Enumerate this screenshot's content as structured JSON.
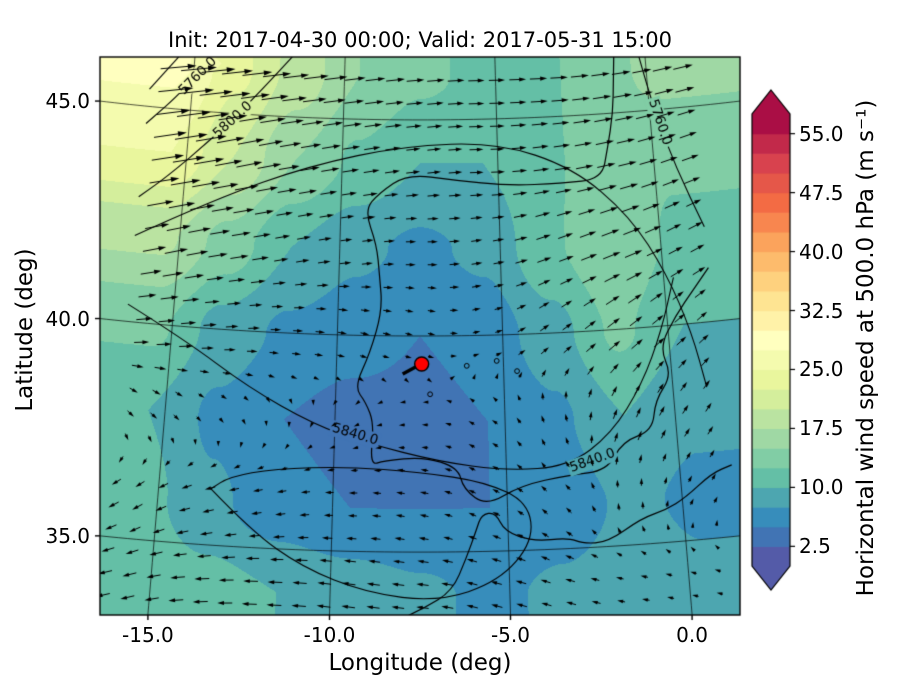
{
  "title": "Init: 2017-04-30 00:00; Valid: 2017-05-31 15:00",
  "axes": {
    "xlabel": "Longitude (deg)",
    "ylabel": "Latitude (deg)",
    "xticks": [
      -15.0,
      -10.0,
      -5.0,
      0.0
    ],
    "xtick_labels": [
      "-15.0",
      "-10.0",
      "-5.0",
      "0.0"
    ],
    "yticks": [
      35.0,
      40.0,
      45.0
    ],
    "ytick_labels": [
      "35.0",
      "40.0",
      "45.0"
    ]
  },
  "colorbar": {
    "label": "Horizontal wind speed at 500.0 hPa (m s⁻¹)",
    "ticks": [
      2.5,
      10.0,
      17.5,
      25.0,
      32.5,
      40.0,
      47.5,
      55.0
    ],
    "tick_labels": [
      "2.5",
      "10.0",
      "17.5",
      "25.0",
      "32.5",
      "40.0",
      "47.5",
      "55.0"
    ],
    "vmin": 0,
    "vmax": 57.5,
    "level_step": 2.5,
    "colormap": "Spectral_r",
    "stops": [
      [
        0.0,
        "#5e4fa2"
      ],
      [
        0.1,
        "#3288bd"
      ],
      [
        0.2,
        "#66c2a5"
      ],
      [
        0.3,
        "#abdda4"
      ],
      [
        0.4,
        "#e6f598"
      ],
      [
        0.5,
        "#ffffbf"
      ],
      [
        0.6,
        "#fee08b"
      ],
      [
        0.7,
        "#fdae61"
      ],
      [
        0.8,
        "#f46d43"
      ],
      [
        0.9,
        "#d53e4f"
      ],
      [
        1.0,
        "#9e0142"
      ]
    ]
  },
  "chart_data": {
    "type": "heatmap",
    "title": "Init: 2017-04-30 00:00; Valid: 2017-05-31 15:00",
    "xlabel": "Longitude (deg)",
    "ylabel": "Latitude (deg)",
    "xlim": [
      -16.4,
      1.4
    ],
    "ylim": [
      33.5,
      46.5
    ],
    "grid_lons": [
      -15.5,
      -13.5,
      -11.5,
      -9.5,
      -7.5,
      -5.5,
      -3.5,
      -1.5,
      0.5
    ],
    "grid_lats": [
      34,
      36,
      38,
      40,
      42,
      44,
      46
    ],
    "speed": [
      [
        12,
        11,
        10,
        9,
        8,
        7,
        8,
        9,
        8
      ],
      [
        11,
        8,
        6,
        5,
        5,
        5,
        6,
        8,
        7
      ],
      [
        10,
        7,
        5,
        4,
        4,
        5,
        7,
        10,
        8
      ],
      [
        13,
        9,
        7,
        6,
        5,
        6,
        9,
        13,
        10
      ],
      [
        18,
        14,
        10,
        8,
        7,
        8,
        12,
        15,
        12
      ],
      [
        25,
        20,
        15,
        12,
        10,
        10,
        12,
        14,
        13
      ],
      [
        28,
        23,
        19,
        15,
        13,
        12,
        12,
        14,
        16
      ]
    ],
    "u": [
      [
        -9,
        -10,
        -10,
        -9,
        -8,
        -7,
        -6,
        -4,
        -3
      ],
      [
        -6,
        -7,
        -6,
        -5,
        -5,
        -4,
        -3,
        0,
        2
      ],
      [
        4,
        2,
        0,
        -2,
        -3,
        -3,
        -1,
        3,
        4
      ],
      [
        11,
        8,
        6,
        5,
        4,
        4,
        6,
        9,
        7
      ],
      [
        17,
        13,
        9,
        7,
        6,
        7,
        10,
        13,
        10
      ],
      [
        24,
        19,
        14,
        11,
        9,
        9,
        11,
        13,
        12
      ],
      [
        27,
        22,
        18,
        14,
        12,
        11,
        12,
        13,
        14
      ]
    ],
    "v": [
      [
        -3,
        -1,
        0,
        1,
        1,
        2,
        2,
        1,
        1
      ],
      [
        -4,
        -2,
        -1,
        0,
        1,
        2,
        3,
        4,
        3
      ],
      [
        -3,
        -2,
        -2,
        -1,
        0,
        2,
        4,
        6,
        5
      ],
      [
        2,
        1,
        0,
        -1,
        -1,
        1,
        4,
        6,
        5
      ],
      [
        5,
        3,
        2,
        1,
        0,
        1,
        3,
        4,
        4
      ],
      [
        6,
        5,
        3,
        2,
        1,
        0,
        1,
        2,
        3
      ],
      [
        5,
        4,
        3,
        2,
        1,
        0,
        0,
        1,
        2
      ]
    ],
    "marker": {
      "lon": -7.45,
      "lat": 39.35,
      "color": "#ff0000"
    },
    "height_contours": [
      {
        "value": "5760.0",
        "pts": [
          [
            -14.0,
            46.6
          ],
          [
            -15.2,
            45.5
          ],
          [
            -16.4,
            44.6
          ]
        ],
        "labels": [
          [
            -14.85,
            45.8
          ]
        ]
      },
      {
        "value": "",
        "pts": [
          [
            -15.1,
            46.6
          ],
          [
            -16.4,
            45.4
          ]
        ],
        "labels": []
      },
      {
        "value": "5800.0",
        "pts": [
          [
            -11.5,
            46.6
          ],
          [
            -12.8,
            45.5
          ],
          [
            -14.2,
            44.4
          ],
          [
            -15.6,
            43.4
          ],
          [
            -16.4,
            42.9
          ]
        ],
        "labels": [
          [
            -13.6,
            44.85
          ]
        ]
      },
      {
        "value": "",
        "pts": [
          [
            -16.4,
            42.0
          ],
          [
            -14.0,
            43.0
          ],
          [
            -11.0,
            43.9
          ],
          [
            -8.0,
            44.4
          ],
          [
            -5.0,
            44.45
          ],
          [
            -2.6,
            43.8
          ],
          [
            -0.9,
            42.6
          ],
          [
            0.1,
            41.2
          ],
          [
            0.7,
            39.8
          ],
          [
            1.0,
            38.5
          ]
        ],
        "labels": []
      },
      {
        "value": "5840.0",
        "pts": [
          [
            -16.4,
            40.4
          ],
          [
            -14.6,
            39.7
          ],
          [
            -12.6,
            38.7
          ],
          [
            -10.6,
            37.9
          ],
          [
            -9.0,
            37.5
          ],
          [
            -7.0,
            37.1
          ],
          [
            -5.0,
            36.85
          ],
          [
            -3.2,
            36.9
          ],
          [
            -1.9,
            37.6
          ],
          [
            -0.9,
            38.7
          ],
          [
            -0.2,
            39.9
          ],
          [
            0.3,
            41.1
          ]
        ],
        "labels": [
          [
            -9.4,
            37.7
          ],
          [
            -2.5,
            37.0
          ]
        ]
      },
      {
        "value": "5840.0",
        "pts": [
          [
            -13.5,
            36.3
          ],
          [
            -12.3,
            35.4
          ],
          [
            -10.8,
            34.6
          ],
          [
            -9.0,
            34.05
          ],
          [
            -7.0,
            33.85
          ],
          [
            -5.3,
            34.3
          ],
          [
            -4.3,
            35.2
          ],
          [
            -4.4,
            36.1
          ],
          [
            -5.6,
            36.6
          ],
          [
            -7.5,
            36.85
          ],
          [
            -9.6,
            36.95
          ],
          [
            -11.7,
            36.85
          ],
          [
            -13.0,
            36.6
          ],
          [
            -13.5,
            36.3
          ]
        ],
        "labels": []
      },
      {
        "value": "5760.0",
        "pts": [
          [
            -0.3,
            46.6
          ],
          [
            0.1,
            45.1
          ],
          [
            0.7,
            43.6
          ],
          [
            1.4,
            42.2
          ]
        ],
        "labels": [
          [
            0.3,
            44.7
          ]
        ]
      }
    ],
    "coastlines": [
      [
        [
          -1.0,
          46.6
        ],
        [
          -1.1,
          45.8
        ],
        [
          -1.2,
          45.0
        ],
        [
          -1.45,
          44.2
        ],
        [
          -1.7,
          43.5
        ],
        [
          -3.0,
          43.45
        ],
        [
          -4.7,
          43.45
        ],
        [
          -6.4,
          43.6
        ],
        [
          -7.9,
          43.75
        ],
        [
          -8.8,
          43.3
        ],
        [
          -9.25,
          42.9
        ],
        [
          -8.85,
          42.1
        ],
        [
          -8.75,
          41.4
        ],
        [
          -8.65,
          40.6
        ],
        [
          -9.0,
          39.6
        ],
        [
          -9.45,
          38.8
        ],
        [
          -9.1,
          38.45
        ],
        [
          -8.85,
          37.95
        ],
        [
          -8.95,
          37.0
        ],
        [
          -8.55,
          37.1
        ],
        [
          -7.4,
          37.2
        ],
        [
          -6.4,
          36.95
        ],
        [
          -6.25,
          36.45
        ],
        [
          -5.6,
          36.05
        ],
        [
          -4.6,
          36.5
        ],
        [
          -3.2,
          36.7
        ],
        [
          -2.1,
          36.75
        ],
        [
          -1.6,
          37.4
        ],
        [
          -0.7,
          37.6
        ],
        [
          -0.55,
          38.3
        ],
        [
          0.0,
          38.85
        ],
        [
          -0.3,
          39.5
        ],
        [
          0.25,
          40.2
        ],
        [
          0.9,
          40.8
        ],
        [
          1.4,
          41.25
        ]
      ],
      [
        [
          -9.2,
          33.1
        ],
        [
          -8.3,
          33.35
        ],
        [
          -7.4,
          33.7
        ],
        [
          -6.6,
          34.1
        ],
        [
          -6.2,
          34.85
        ],
        [
          -5.9,
          35.5
        ],
        [
          -5.75,
          35.85
        ],
        [
          -5.35,
          35.9
        ],
        [
          -5.1,
          35.45
        ],
        [
          -4.3,
          35.2
        ],
        [
          -3.3,
          35.25
        ],
        [
          -2.9,
          35.1
        ],
        [
          -2.2,
          35.1
        ],
        [
          -1.2,
          35.6
        ],
        [
          -0.5,
          35.75
        ],
        [
          0.1,
          36.0
        ],
        [
          0.9,
          36.5
        ],
        [
          1.5,
          36.65
        ]
      ]
    ],
    "lakes": [
      [
        -6.1,
        39.3
      ],
      [
        -5.2,
        39.4
      ],
      [
        -4.6,
        39.15
      ],
      [
        -7.2,
        38.65
      ]
    ],
    "projection": {
      "type": "lambert_conformal_conic",
      "std_parallels": [
        35,
        45
      ],
      "center_lon": -7.5
    },
    "grid_on": true
  }
}
